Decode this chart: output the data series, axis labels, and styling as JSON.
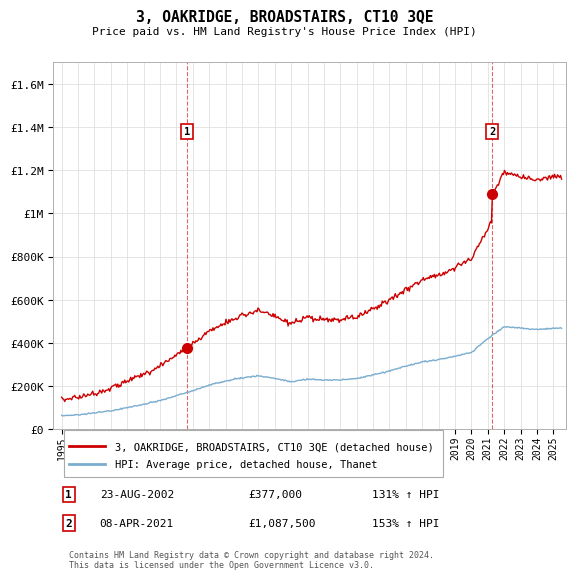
{
  "title": "3, OAKRIDGE, BROADSTAIRS, CT10 3QE",
  "subtitle": "Price paid vs. HM Land Registry's House Price Index (HPI)",
  "ylabel_ticks": [
    "£0",
    "£200K",
    "£400K",
    "£600K",
    "£800K",
    "£1M",
    "£1.2M",
    "£1.4M",
    "£1.6M"
  ],
  "ytick_values": [
    0,
    200000,
    400000,
    600000,
    800000,
    1000000,
    1200000,
    1400000,
    1600000
  ],
  "ylim": [
    0,
    1700000
  ],
  "xlim_start": 1994.5,
  "xlim_end": 2025.8,
  "legend_line1": "3, OAKRIDGE, BROADSTAIRS, CT10 3QE (detached house)",
  "legend_line2": "HPI: Average price, detached house, Thanet",
  "line1_color": "#cc0000",
  "line2_color": "#7aadcf",
  "sale1_date": "23-AUG-2002",
  "sale1_price": "£377,000",
  "sale1_hpi": "131% ↑ HPI",
  "sale1_x": 2002.65,
  "sale1_y": 377000,
  "sale2_date": "08-APR-2021",
  "sale2_price": "£1,087,500",
  "sale2_hpi": "153% ↑ HPI",
  "sale2_x": 2021.27,
  "sale2_y": 1087500,
  "vline1_x": 2002.65,
  "vline2_x": 2021.27,
  "footer": "Contains HM Land Registry data © Crown copyright and database right 2024.\nThis data is licensed under the Open Government Licence v3.0.",
  "background_color": "#ffffff",
  "grid_color": "#e0e0e0",
  "hpi_years": [
    1995,
    1996,
    1997,
    1998,
    1999,
    2000,
    2001,
    2002,
    2003,
    2004,
    2005,
    2006,
    2007,
    2008,
    2009,
    2010,
    2011,
    2012,
    2013,
    2014,
    2015,
    2016,
    2017,
    2018,
    2019,
    2020,
    2021,
    2022,
    2023,
    2024,
    2025
  ],
  "hpi_values": [
    62000,
    67000,
    75000,
    86000,
    100000,
    115000,
    132000,
    155000,
    178000,
    205000,
    222000,
    238000,
    248000,
    235000,
    220000,
    232000,
    228000,
    228000,
    235000,
    252000,
    270000,
    292000,
    312000,
    322000,
    338000,
    355000,
    420000,
    475000,
    468000,
    462000,
    468000
  ],
  "prop_initial_value": 160000
}
